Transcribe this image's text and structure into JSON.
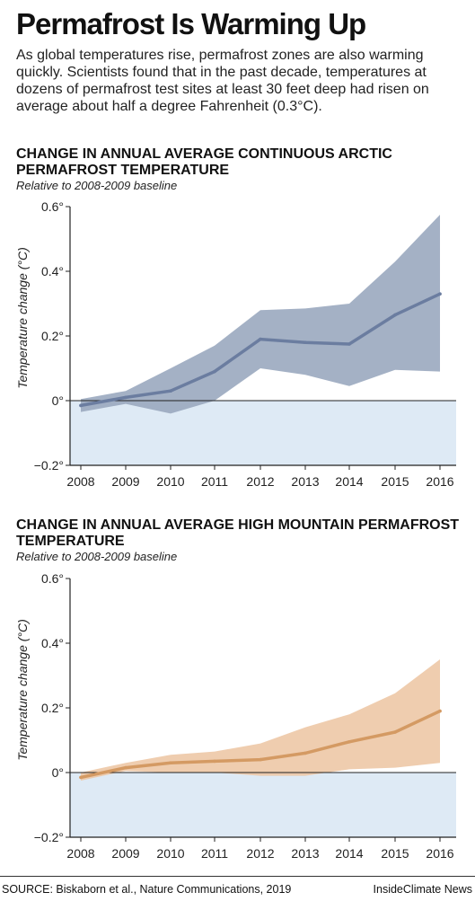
{
  "header": {
    "title": "Permafrost Is Warming Up",
    "intro": "As global temperatures rise, permafrost zones are also warming quickly. Scientists found that in the past decade, temperatures at dozens of permafrost test sites at least 30 feet deep had risen on average about half a degree Fahrenheit (0.3°C)."
  },
  "colors": {
    "arctic_band": "#9aa8bf",
    "arctic_line": "#6b7da0",
    "mountain_band": "#edc8a6",
    "mountain_line": "#d49a63",
    "negative_zone": "#deeaf5"
  },
  "chart_data": [
    {
      "type": "line",
      "title": "CHANGE IN ANNUAL AVERAGE CONTINUOUS ARCTIC PERMAFROST TEMPERATURE",
      "subtitle": "Relative to 2008-2009 baseline",
      "ylabel": "Temperature change (°C)",
      "ylim": [
        -0.2,
        0.6
      ],
      "yticks": [
        -0.2,
        0,
        0.2,
        0.4,
        0.6
      ],
      "ytick_labels": [
        "−0.2°",
        "0°",
        "0.2°",
        "0.4°",
        "0.6°"
      ],
      "x": [
        "2008",
        "2009",
        "2010",
        "2011",
        "2012",
        "2013",
        "2014",
        "2015",
        "2016"
      ],
      "series": [
        {
          "values": [
            -0.015,
            0.01,
            0.03,
            0.09,
            0.19,
            0.18,
            0.175,
            0.265,
            0.33
          ],
          "lower": [
            -0.035,
            -0.01,
            -0.04,
            0.0,
            0.1,
            0.08,
            0.045,
            0.095,
            0.09
          ],
          "upper": [
            0.005,
            0.03,
            0.1,
            0.17,
            0.28,
            0.285,
            0.3,
            0.43,
            0.575
          ]
        }
      ],
      "grid": false
    },
    {
      "type": "line",
      "title": "CHANGE IN ANNUAL AVERAGE HIGH MOUNTAIN PERMAFROST TEMPERATURE",
      "subtitle": "Relative to 2008-2009 baseline",
      "ylabel": "Temperature change (°C)",
      "ylim": [
        -0.2,
        0.6
      ],
      "yticks": [
        -0.2,
        0,
        0.2,
        0.4,
        0.6
      ],
      "ytick_labels": [
        "−0.2°",
        "0°",
        "0.2°",
        "0.4°",
        "0.6°"
      ],
      "x": [
        "2008",
        "2009",
        "2010",
        "2011",
        "2012",
        "2013",
        "2014",
        "2015",
        "2016"
      ],
      "series": [
        {
          "values": [
            -0.015,
            0.015,
            0.03,
            0.035,
            0.04,
            0.06,
            0.095,
            0.125,
            0.19
          ],
          "lower": [
            -0.025,
            0.005,
            0.0,
            0.0,
            -0.01,
            -0.01,
            0.01,
            0.015,
            0.03
          ],
          "upper": [
            0.0,
            0.03,
            0.055,
            0.065,
            0.09,
            0.14,
            0.18,
            0.245,
            0.35
          ]
        }
      ],
      "grid": false
    }
  ],
  "footer": {
    "source": "SOURCE: Biskaborn et al., Nature Communications, 2019",
    "credit": "InsideClimate News"
  }
}
